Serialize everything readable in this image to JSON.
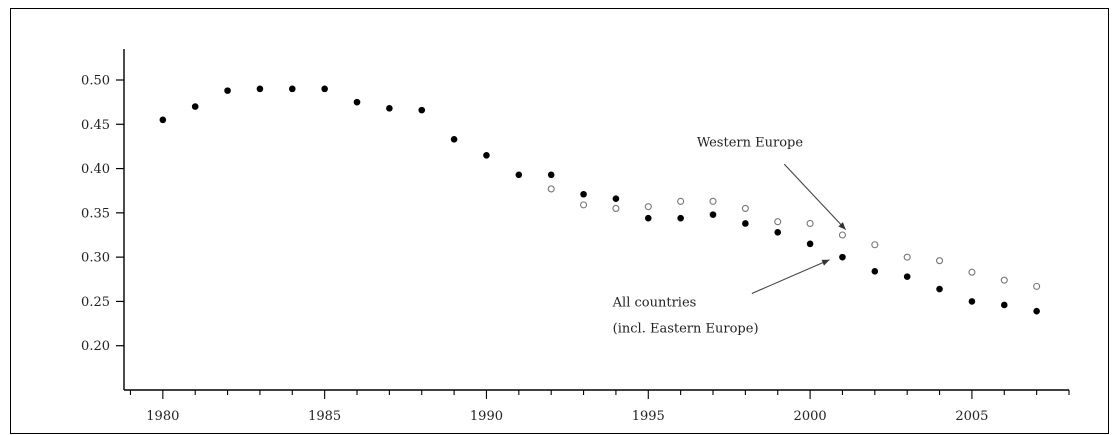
{
  "chart_data": {
    "type": "scatter",
    "title": "",
    "xlabel": "",
    "ylabel": "",
    "xlim": [
      1978.8,
      2008.0
    ],
    "ylim": [
      0.15,
      0.535
    ],
    "x_ticks": [
      1980,
      1985,
      1990,
      1995,
      2000,
      2005
    ],
    "y_ticks": [
      "0.20",
      "0.25",
      "0.30",
      "0.35",
      "0.40",
      "0.45",
      "0.50"
    ],
    "grid": false,
    "series": [
      {
        "marker": "filled",
        "color": "#000000",
        "points": [
          {
            "x": 1980,
            "y": 0.455
          },
          {
            "x": 1981,
            "y": 0.47
          },
          {
            "x": 1982,
            "y": 0.488
          },
          {
            "x": 1983,
            "y": 0.49
          },
          {
            "x": 1984,
            "y": 0.49
          },
          {
            "x": 1985,
            "y": 0.49
          },
          {
            "x": 1986,
            "y": 0.475
          },
          {
            "x": 1987,
            "y": 0.468
          },
          {
            "x": 1988,
            "y": 0.466
          },
          {
            "x": 1989,
            "y": 0.433
          },
          {
            "x": 1990,
            "y": 0.415
          },
          {
            "x": 1991,
            "y": 0.393
          },
          {
            "x": 1992,
            "y": 0.393
          },
          {
            "x": 1993,
            "y": 0.371
          },
          {
            "x": 1994,
            "y": 0.366
          },
          {
            "x": 1995,
            "y": 0.344
          },
          {
            "x": 1996,
            "y": 0.344
          },
          {
            "x": 1997,
            "y": 0.348
          },
          {
            "x": 1998,
            "y": 0.338
          },
          {
            "x": 1999,
            "y": 0.328
          },
          {
            "x": 2000,
            "y": 0.315
          },
          {
            "x": 2001,
            "y": 0.3
          },
          {
            "x": 2002,
            "y": 0.284
          },
          {
            "x": 2003,
            "y": 0.278
          },
          {
            "x": 2004,
            "y": 0.264
          },
          {
            "x": 2005,
            "y": 0.25
          },
          {
            "x": 2006,
            "y": 0.246
          },
          {
            "x": 2007,
            "y": 0.239
          }
        ]
      },
      {
        "marker": "hollow",
        "color": "#777777",
        "points": [
          {
            "x": 1992,
            "y": 0.377
          },
          {
            "x": 1993,
            "y": 0.359
          },
          {
            "x": 1994,
            "y": 0.355
          },
          {
            "x": 1995,
            "y": 0.357
          },
          {
            "x": 1996,
            "y": 0.363
          },
          {
            "x": 1997,
            "y": 0.363
          },
          {
            "x": 1998,
            "y": 0.355
          },
          {
            "x": 1999,
            "y": 0.34
          },
          {
            "x": 2000,
            "y": 0.338
          },
          {
            "x": 2001,
            "y": 0.325
          },
          {
            "x": 2002,
            "y": 0.314
          },
          {
            "x": 2003,
            "y": 0.3
          },
          {
            "x": 2004,
            "y": 0.296
          },
          {
            "x": 2005,
            "y": 0.283
          },
          {
            "x": 2006,
            "y": 0.274
          },
          {
            "x": 2007,
            "y": 0.267
          }
        ]
      }
    ],
    "annotations": [
      {
        "lines": [
          "Western Europe"
        ],
        "text_x": 1996.5,
        "text_y": 0.425,
        "arrow_from": [
          1999.2,
          0.405
        ],
        "arrow_to": [
          2001.1,
          0.331
        ]
      },
      {
        "lines": [
          "All countries",
          "(incl. Eastern Europe)"
        ],
        "text_x": 1993.9,
        "text_y": 0.244,
        "arrow_from": [
          1998.2,
          0.259
        ],
        "arrow_to": [
          2000.6,
          0.297
        ]
      }
    ]
  }
}
